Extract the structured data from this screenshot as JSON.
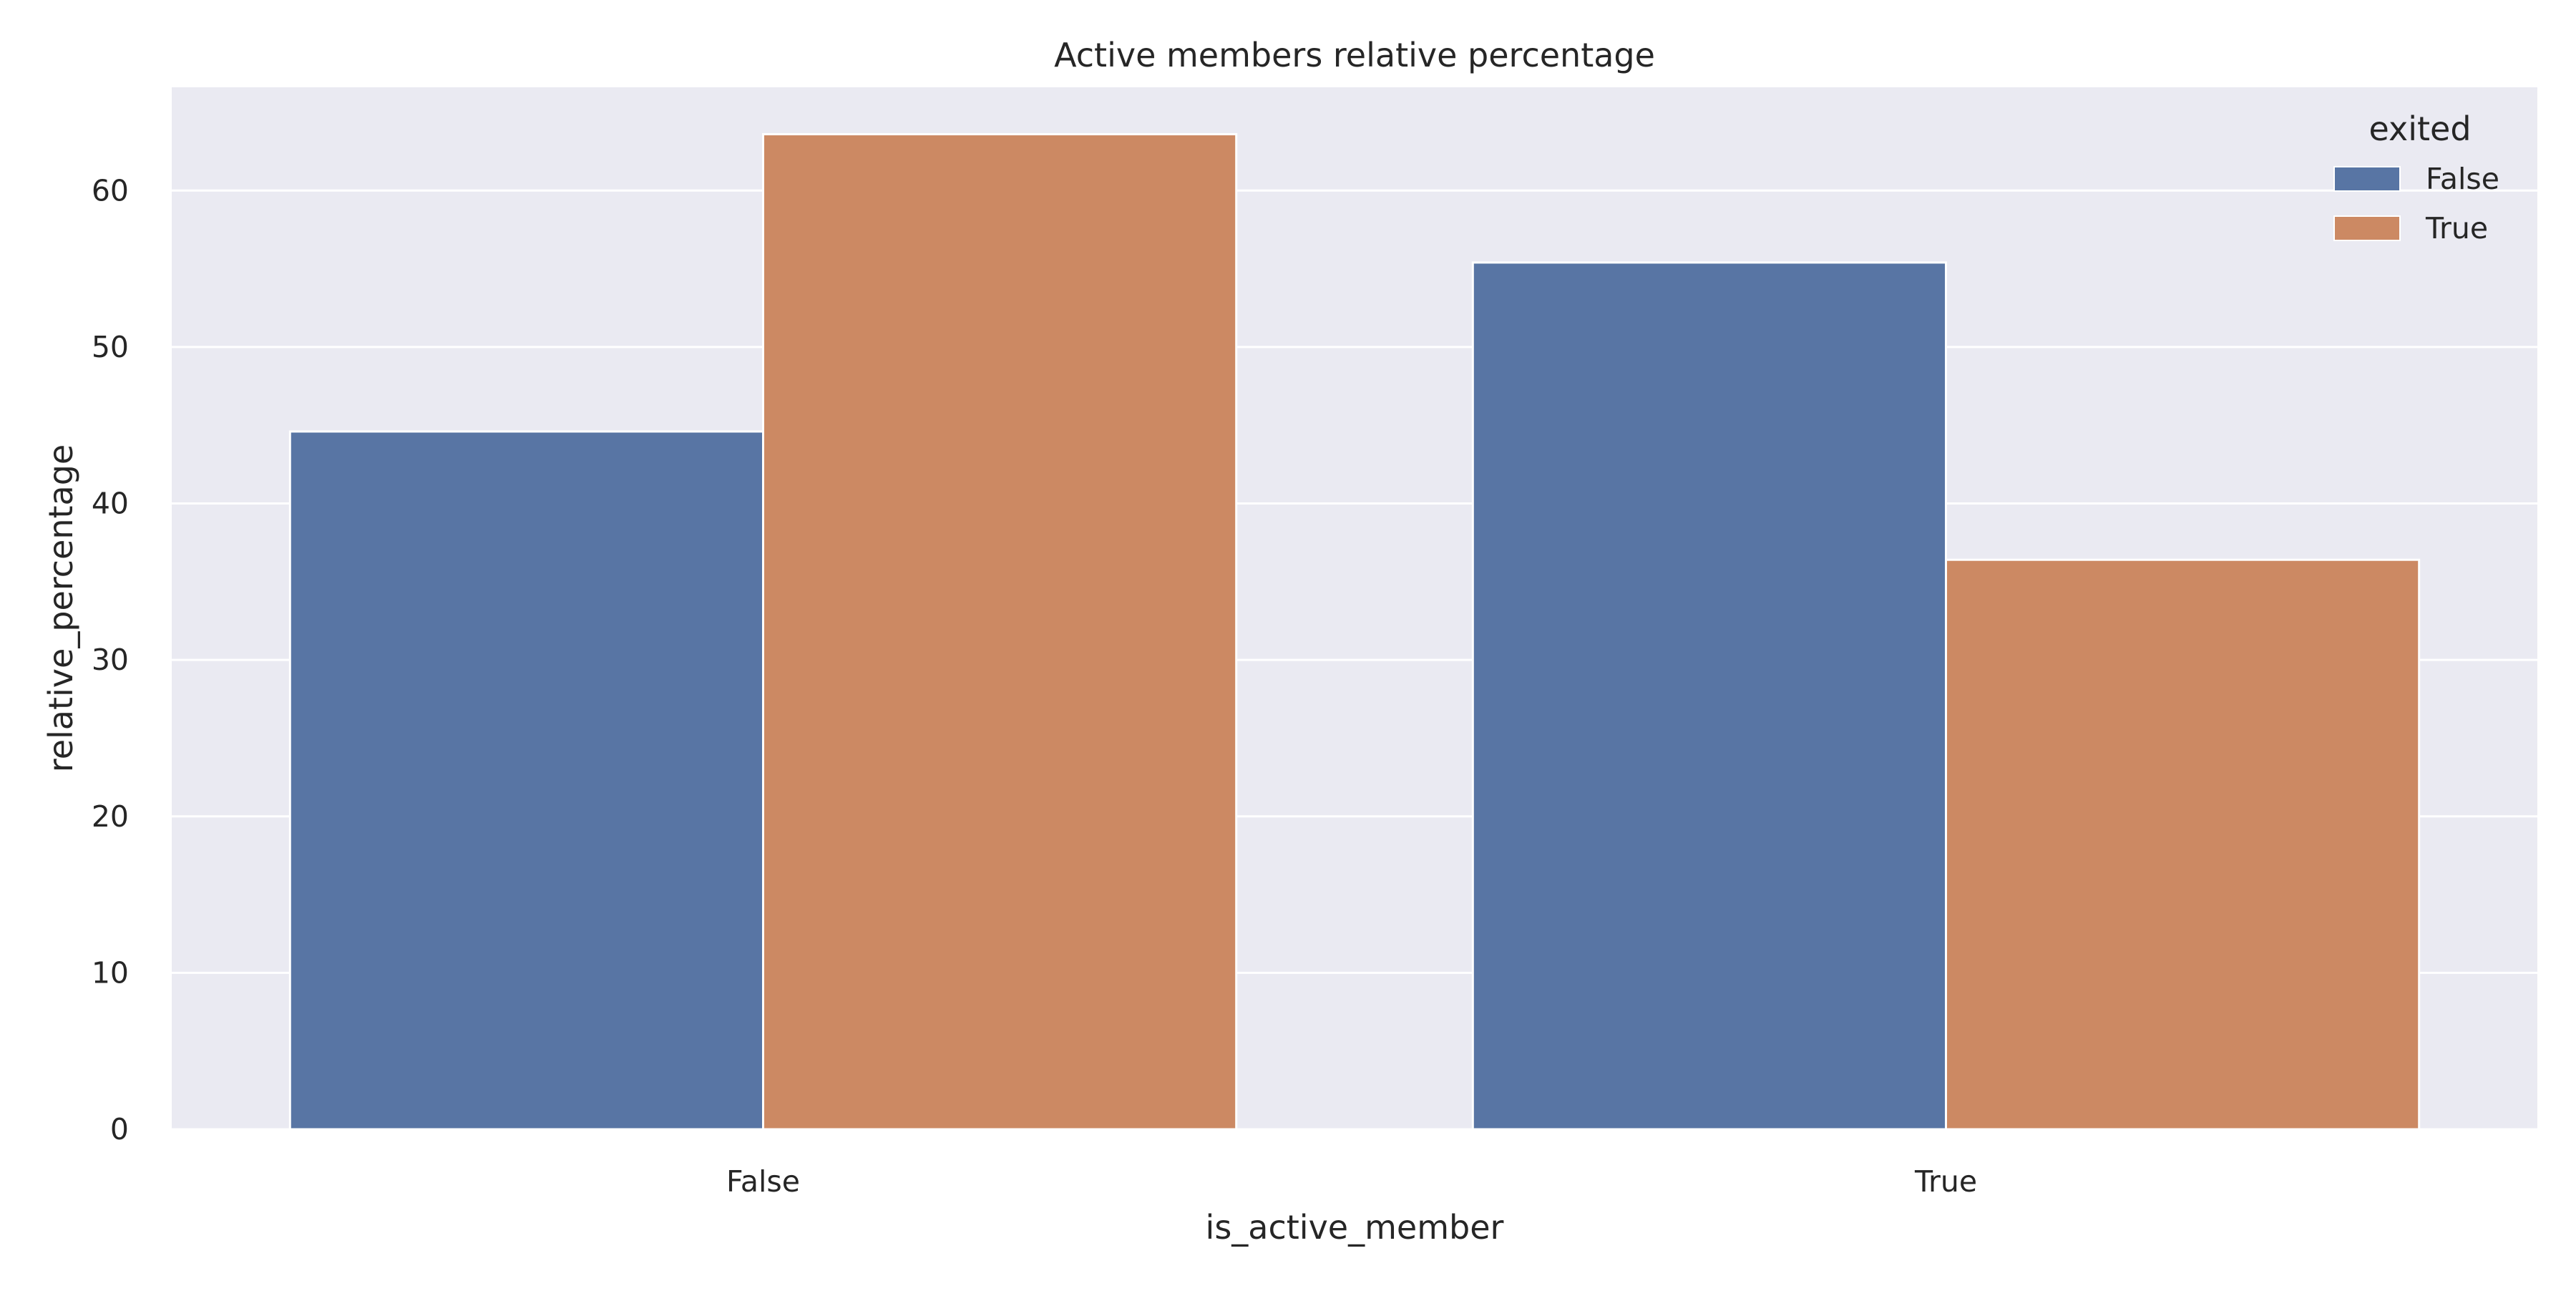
{
  "colors": {
    "background": "#eaeaf2",
    "grid": "#ffffff",
    "series_false": "#5875a4",
    "series_true": "#cc8963"
  },
  "chart_data": {
    "type": "bar",
    "title": "Active members relative percentage",
    "xlabel": "is_active_member",
    "ylabel": "relative_percentage",
    "categories": [
      "False",
      "True"
    ],
    "series": [
      {
        "name": "False",
        "values": [
          44.6,
          55.4
        ]
      },
      {
        "name": "True",
        "values": [
          63.6,
          36.4
        ]
      }
    ],
    "ylim": [
      0,
      66.6
    ],
    "yticks": [
      0,
      10,
      20,
      30,
      40,
      50,
      60
    ],
    "grid": true,
    "legend": {
      "title": "exited",
      "position": "top-right"
    }
  }
}
